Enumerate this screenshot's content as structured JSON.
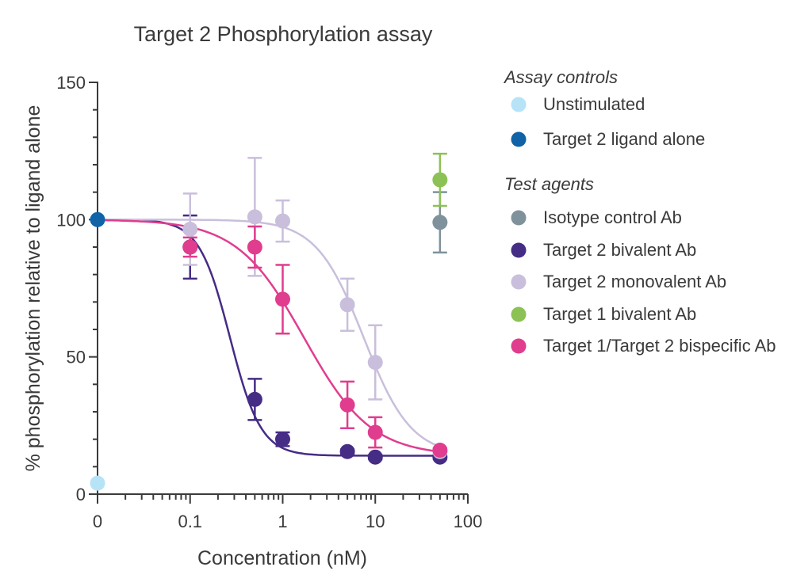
{
  "chart_data": {
    "type": "scatter",
    "title": "Target 2 Phosphorylation assay",
    "xlabel": "Concentration (nM)",
    "ylabel": "% phosphorylation relative to ligand alone",
    "xscale": "log",
    "xlim": [
      0.01,
      100
    ],
    "ylim": [
      0,
      150
    ],
    "x_ticks": [
      {
        "value": 0.01,
        "label": "0"
      },
      {
        "value": 0.1,
        "label": "0.1"
      },
      {
        "value": 1,
        "label": "1"
      },
      {
        "value": 10,
        "label": "10"
      },
      {
        "value": 100,
        "label": "100"
      }
    ],
    "y_ticks": [
      {
        "value": 0,
        "label": "0"
      },
      {
        "value": 50,
        "label": "50"
      },
      {
        "value": 100,
        "label": "100"
      },
      {
        "value": 150,
        "label": "150"
      }
    ],
    "legend_groups": [
      {
        "heading": "Assay controls",
        "entries": [
          0,
          1
        ]
      },
      {
        "heading": "Test agents",
        "entries": [
          2,
          3,
          4,
          5,
          6
        ]
      }
    ],
    "series": [
      {
        "name": "Unstimulated",
        "color": "#b7e3f7",
        "points": [
          {
            "x": 0.01,
            "y": 4
          }
        ]
      },
      {
        "name": "Target 2 ligand alone",
        "color": "#0f63a6",
        "points": [
          {
            "x": 0.01,
            "y": 100
          }
        ]
      },
      {
        "name": "Isotype control  Ab",
        "color": "#7f929b",
        "points": [
          {
            "x": 50,
            "y": 99,
            "err": 11
          }
        ]
      },
      {
        "name": "Target 2 bivalent Ab",
        "color": "#452c85",
        "points": [
          {
            "x": 0.1,
            "y": 90,
            "err": 11.5
          },
          {
            "x": 0.5,
            "y": 34.5,
            "err": 7.5
          },
          {
            "x": 1,
            "y": 20,
            "err": 2.5
          },
          {
            "x": 5,
            "y": 15.5,
            "err": 0.8
          },
          {
            "x": 10,
            "y": 13.5,
            "err": 0.8
          },
          {
            "x": 50,
            "y": 13.5,
            "err": 0.8
          }
        ],
        "fit": {
          "top": 100,
          "bottom": 14,
          "ic50": 0.27,
          "hill": 2.6
        }
      },
      {
        "name": "Target 2 monovalent Ab",
        "color": "#c9bfdc",
        "points": [
          {
            "x": 0.1,
            "y": 96.5,
            "err": 13
          },
          {
            "x": 0.5,
            "y": 101,
            "err": 21.5
          },
          {
            "x": 1,
            "y": 99.5,
            "err": 7.5
          },
          {
            "x": 5,
            "y": 69,
            "err": 9.5
          },
          {
            "x": 10,
            "y": 48,
            "err": 13.5
          },
          {
            "x": 50,
            "y": 15.5,
            "err": 0.8
          }
        ],
        "fit": {
          "top": 100,
          "bottom": 14,
          "ic50": 7.5,
          "hill": 1.7
        }
      },
      {
        "name": "Target 1 bivalent Ab",
        "color": "#8cc255",
        "points": [
          {
            "x": 50,
            "y": 114.5,
            "err": 9.5
          }
        ]
      },
      {
        "name": "Target 1/Target 2 bispecific Ab",
        "color": "#e03d8e",
        "points": [
          {
            "x": 0.1,
            "y": 90,
            "err": 3.5
          },
          {
            "x": 0.5,
            "y": 90,
            "err": 7.5
          },
          {
            "x": 1,
            "y": 71,
            "err": 12.5
          },
          {
            "x": 5,
            "y": 32.5,
            "err": 8.5
          },
          {
            "x": 10,
            "y": 22.5,
            "err": 5.5
          },
          {
            "x": 50,
            "y": 16,
            "err": 0.8
          }
        ],
        "fit": {
          "top": 100,
          "bottom": 14,
          "ic50": 1.7,
          "hill": 1.2
        }
      }
    ]
  }
}
